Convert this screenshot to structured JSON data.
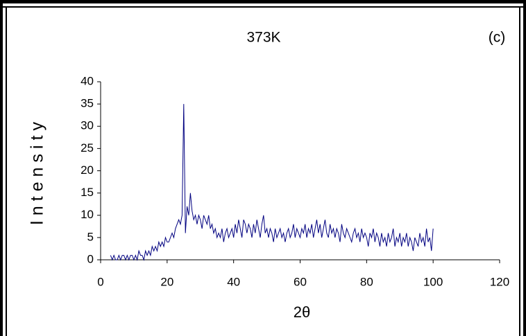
{
  "chart_data": {
    "type": "line",
    "title": "373K",
    "annotation": "(c)",
    "x_label": "2θ",
    "y_label": "Intensity",
    "xlim": [
      0,
      120
    ],
    "xticks": [
      0,
      20,
      40,
      60,
      80,
      100,
      120
    ],
    "ylim": [
      0,
      40
    ],
    "yticks": [
      0,
      5,
      10,
      15,
      20,
      25,
      30,
      35,
      40
    ],
    "grid": false,
    "color": "#000080",
    "x": [
      3,
      3.5,
      4,
      4.5,
      5,
      5.5,
      6,
      6.5,
      7,
      7.5,
      8,
      8.5,
      9,
      9.5,
      10,
      10.5,
      11,
      11.5,
      12,
      12.5,
      13,
      13.5,
      14,
      14.5,
      15,
      15.5,
      16,
      16.5,
      17,
      17.5,
      18,
      18.5,
      19,
      19.5,
      20,
      20.5,
      21,
      21.5,
      22,
      22.5,
      23,
      23.5,
      24,
      24.5,
      25,
      25.5,
      26,
      26.5,
      27,
      27.5,
      28,
      28.5,
      29,
      29.5,
      30,
      30.5,
      31,
      31.5,
      32,
      32.5,
      33,
      33.5,
      34,
      34.5,
      35,
      35.5,
      36,
      36.5,
      37,
      37.5,
      38,
      38.5,
      39,
      39.5,
      40,
      40.5,
      41,
      41.5,
      42,
      42.5,
      43,
      43.5,
      44,
      44.5,
      45,
      45.5,
      46,
      46.5,
      47,
      47.5,
      48,
      48.5,
      49,
      49.5,
      50,
      50.5,
      51,
      51.5,
      52,
      52.5,
      53,
      53.5,
      54,
      54.5,
      55,
      55.5,
      56,
      56.5,
      57,
      57.5,
      58,
      58.5,
      59,
      59.5,
      60,
      60.5,
      61,
      61.5,
      62,
      62.5,
      63,
      63.5,
      64,
      64.5,
      65,
      65.5,
      66,
      66.5,
      67,
      67.5,
      68,
      68.5,
      69,
      69.5,
      70,
      70.5,
      71,
      71.5,
      72,
      72.5,
      73,
      73.5,
      74,
      74.5,
      75,
      75.5,
      76,
      76.5,
      77,
      77.5,
      78,
      78.5,
      79,
      79.5,
      80,
      80.5,
      81,
      81.5,
      82,
      82.5,
      83,
      83.5,
      84,
      84.5,
      85,
      85.5,
      86,
      86.5,
      87,
      87.5,
      88,
      88.5,
      89,
      89.5,
      90,
      90.5,
      91,
      91.5,
      92,
      92.5,
      93,
      93.5,
      94,
      94.5,
      95,
      95.5,
      96,
      96.5,
      97,
      97.5,
      98,
      98.5,
      99,
      99.5,
      100
    ],
    "values": [
      1,
      0,
      1,
      0,
      0,
      1,
      0,
      1,
      1,
      0,
      1,
      0,
      1,
      1,
      0,
      1,
      0,
      2,
      1,
      1,
      0,
      2,
      1,
      2,
      1,
      3,
      2,
      3,
      2,
      4,
      3,
      4,
      3,
      5,
      4,
      4,
      5,
      6,
      5,
      7,
      8,
      9,
      8,
      10,
      35,
      6,
      12,
      10,
      15,
      11,
      9,
      10,
      8,
      10,
      9,
      7,
      10,
      9,
      8,
      10,
      7,
      8,
      6,
      7,
      5,
      6,
      5,
      7,
      4,
      6,
      7,
      5,
      6,
      7,
      5,
      8,
      6,
      9,
      7,
      5,
      9,
      8,
      6,
      8,
      7,
      5,
      8,
      6,
      9,
      7,
      5,
      8,
      10,
      6,
      7,
      5,
      7,
      6,
      4,
      7,
      5,
      6,
      7,
      5,
      6,
      4,
      6,
      7,
      5,
      6,
      8,
      5,
      7,
      6,
      5,
      7,
      6,
      8,
      5,
      7,
      6,
      8,
      5,
      7,
      9,
      6,
      8,
      5,
      7,
      9,
      6,
      5,
      8,
      6,
      7,
      5,
      7,
      6,
      4,
      8,
      6,
      5,
      7,
      6,
      5,
      4,
      6,
      7,
      5,
      6,
      4,
      7,
      5,
      6,
      5,
      3,
      6,
      5,
      7,
      4,
      6,
      5,
      3,
      6,
      4,
      5,
      3,
      6,
      4,
      5,
      7,
      3,
      5,
      4,
      6,
      3,
      5,
      4,
      6,
      3,
      5,
      4,
      2,
      5,
      4,
      3,
      6,
      4,
      5,
      3,
      7,
      4,
      5,
      2,
      7
    ]
  }
}
